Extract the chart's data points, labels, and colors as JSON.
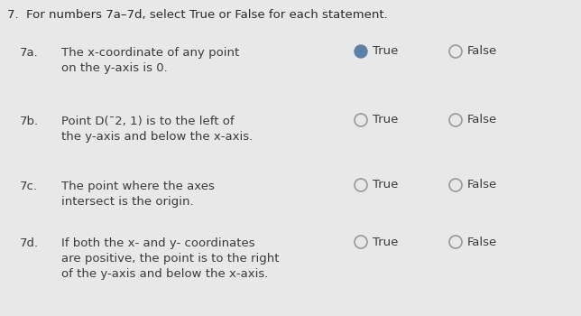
{
  "background_color": "#e8e8e8",
  "title": "7.  For numbers 7a–7d, select True or False for each statement.",
  "title_fontsize": 9.5,
  "title_color": "#2a2a2a",
  "rows": [
    {
      "label": "7a.",
      "lines": [
        "The x-coordinate of any point",
        "on the y-axis is 0."
      ],
      "true_filled": true,
      "false_filled": false
    },
    {
      "label": "7b.",
      "lines": [
        "Point D(¯2, 1) is to the left of",
        "the y-axis and below the x-axis."
      ],
      "true_filled": false,
      "false_filled": false
    },
    {
      "label": "7c.",
      "lines": [
        "The point where the axes",
        "intersect is the origin."
      ],
      "true_filled": false,
      "false_filled": false
    },
    {
      "label": "7d.",
      "lines": [
        "If both the x- and y- coordinates",
        "are positive, the point is to the right",
        "of the y-axis and below the x-axis."
      ],
      "true_filled": false,
      "false_filled": false
    }
  ],
  "filled_color": "#5b7fa6",
  "empty_edge_color": "#999999",
  "text_color": "#3a3a3a",
  "label_color": "#3a3a3a",
  "radio_true_label": "True",
  "radio_false_label": "False",
  "text_fontsize": 9.5,
  "label_fontsize": 9.5,
  "radio_fontsize": 9.5
}
